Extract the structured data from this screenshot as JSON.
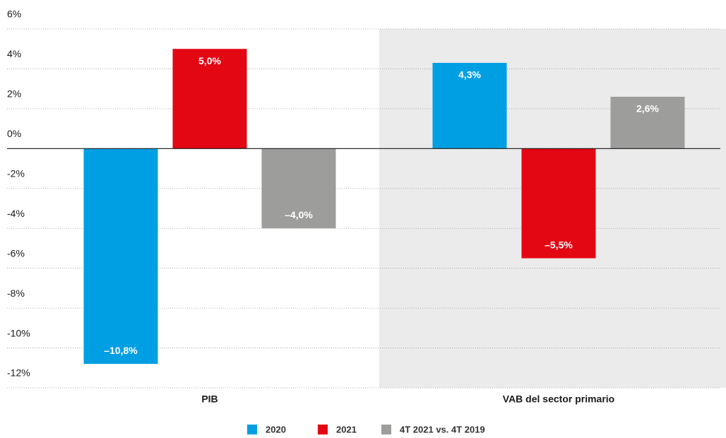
{
  "chart_data": {
    "type": "bar",
    "categories": [
      "PIB",
      "VAB del sector primario"
    ],
    "series": [
      {
        "name": "2020",
        "color": "#009fe3",
        "values": [
          -10.8,
          4.3
        ],
        "value_labels": [
          "–10,8%",
          "4,3%"
        ]
      },
      {
        "name": "2021",
        "color": "#e30613",
        "values": [
          5.0,
          -5.5
        ],
        "value_labels": [
          "5,0%",
          "–5,5%"
        ]
      },
      {
        "name": "4T 2021 vs. 4T 2019",
        "color": "#9d9d9c",
        "values": [
          -4.0,
          2.6
        ],
        "value_labels": [
          "–4,0%",
          "2,6%"
        ]
      }
    ],
    "ylim": [
      -12,
      6
    ],
    "yticks": [
      {
        "value": 6,
        "label": "6%"
      },
      {
        "value": 4,
        "label": "4%"
      },
      {
        "value": 2,
        "label": "2%"
      },
      {
        "value": 0,
        "label": "0%"
      },
      {
        "value": -2,
        "label": "-2%"
      },
      {
        "value": -4,
        "label": "-4%"
      },
      {
        "value": -6,
        "label": "-6%"
      },
      {
        "value": -8,
        "label": "-8%"
      },
      {
        "value": -10,
        "label": "-10%"
      },
      {
        "value": -12,
        "label": "-12%"
      }
    ],
    "grid": true
  }
}
